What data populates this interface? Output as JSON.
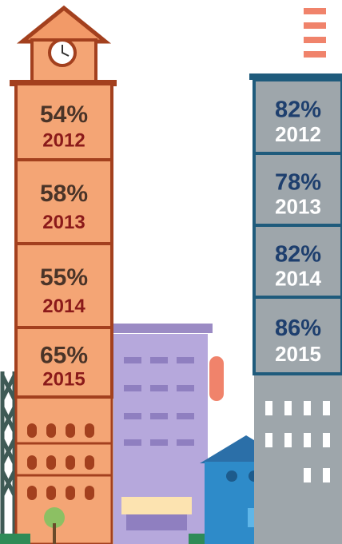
{
  "chart_data": {
    "type": "tower",
    "categories": [
      "2012",
      "2013",
      "2014",
      "2015"
    ],
    "series": [
      {
        "color": "#f4a575",
        "values": [
          54,
          58,
          55,
          65
        ],
        "value_labels": [
          "54%",
          "58%",
          "55%",
          "65%"
        ]
      },
      {
        "color": "#9ea6ab",
        "values": [
          82,
          78,
          82,
          86
        ],
        "value_labels": [
          "82%",
          "78%",
          "82%",
          "86%"
        ]
      }
    ]
  }
}
